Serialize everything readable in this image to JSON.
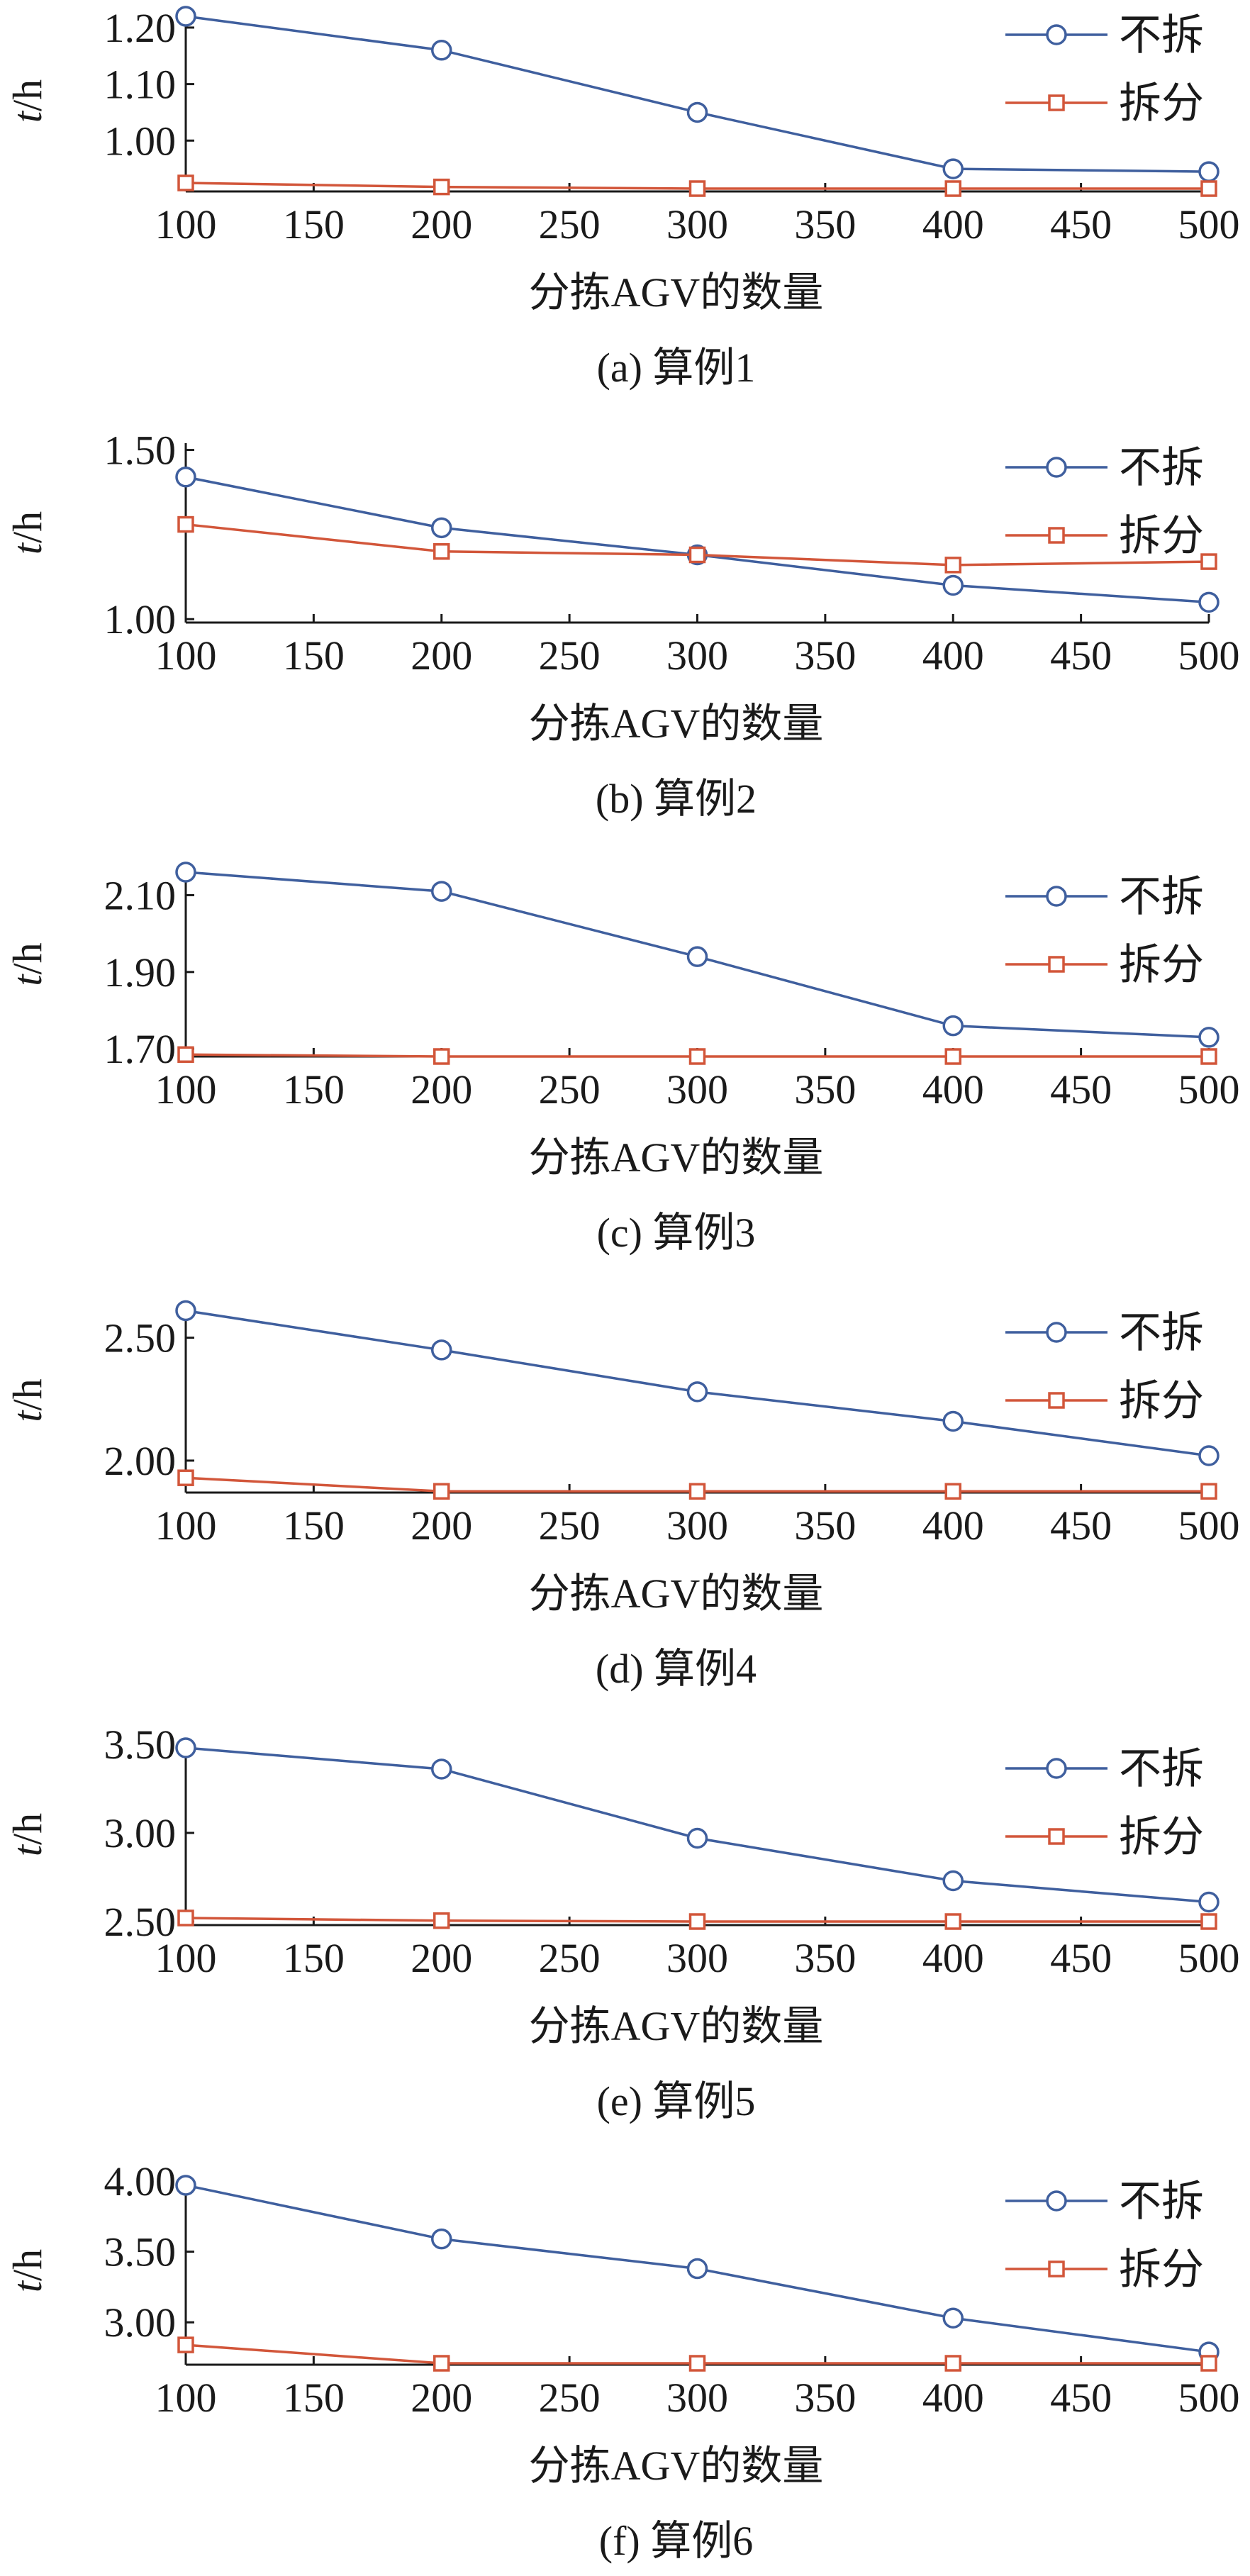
{
  "colors": {
    "no_split": "#3f5f9e",
    "split": "#d2563a",
    "axis": "#1a1a1a"
  },
  "chart_data": [
    {
      "type": "line",
      "caption": "(a) 算例1",
      "xlabel": "分拣AGV的数量",
      "ylabel": "t/h",
      "x": [
        100,
        200,
        300,
        400,
        500
      ],
      "xticks": [
        100,
        150,
        200,
        250,
        300,
        350,
        400,
        450,
        500
      ],
      "xlim": [
        100,
        500
      ],
      "ylim": [
        0.91,
        1.23
      ],
      "yticks": [
        1.0,
        1.1,
        1.2
      ],
      "ytick_labels": [
        "1.00",
        "1.10",
        "1.20"
      ],
      "legend_position": "top-right",
      "series": [
        {
          "name": "不拆",
          "marker": "circle",
          "values": [
            1.22,
            1.16,
            1.05,
            0.95,
            0.945
          ]
        },
        {
          "name": "拆分",
          "marker": "square",
          "values": [
            0.925,
            0.918,
            0.915,
            0.915,
            0.915
          ]
        }
      ]
    },
    {
      "type": "line",
      "caption": "(b) 算例2",
      "xlabel": "分拣AGV的数量",
      "ylabel": "t/h",
      "x": [
        100,
        200,
        300,
        400,
        500
      ],
      "xticks": [
        100,
        150,
        200,
        250,
        300,
        350,
        400,
        450,
        500
      ],
      "xlim": [
        100,
        500
      ],
      "ylim": [
        0.99,
        1.52
      ],
      "yticks": [
        1.0,
        1.5
      ],
      "ytick_labels": [
        "1.00",
        "1.50"
      ],
      "legend_position": "top-right",
      "series": [
        {
          "name": "不拆",
          "marker": "circle",
          "values": [
            1.42,
            1.27,
            1.19,
            1.1,
            1.05
          ]
        },
        {
          "name": "拆分",
          "marker": "square",
          "values": [
            1.28,
            1.2,
            1.19,
            1.16,
            1.17
          ]
        }
      ]
    },
    {
      "type": "line",
      "caption": "(c) 算例3",
      "xlabel": "分拣AGV的数量",
      "ylabel": "t/h",
      "x": [
        100,
        200,
        300,
        400,
        500
      ],
      "xticks": [
        100,
        150,
        200,
        250,
        300,
        350,
        400,
        450,
        500
      ],
      "xlim": [
        100,
        500
      ],
      "ylim": [
        1.68,
        2.16
      ],
      "yticks": [
        1.7,
        1.9,
        2.1
      ],
      "ytick_labels": [
        "1.70",
        "1.90",
        "2.10"
      ],
      "legend_position": "top-right",
      "series": [
        {
          "name": "不拆",
          "marker": "circle",
          "values": [
            2.16,
            2.11,
            1.94,
            1.76,
            1.73
          ]
        },
        {
          "name": "拆分",
          "marker": "square",
          "values": [
            1.685,
            1.68,
            1.68,
            1.68,
            1.68
          ]
        }
      ]
    },
    {
      "type": "line",
      "caption": "(d) 算例4",
      "xlabel": "分拣AGV的数量",
      "ylabel": "t/h",
      "x": [
        100,
        200,
        300,
        400,
        500
      ],
      "xticks": [
        100,
        150,
        200,
        250,
        300,
        350,
        400,
        450,
        500
      ],
      "xlim": [
        100,
        500
      ],
      "ylim": [
        1.87,
        2.62
      ],
      "yticks": [
        2.0,
        2.5
      ],
      "ytick_labels": [
        "2.00",
        "2.50"
      ],
      "legend_position": "top-right",
      "series": [
        {
          "name": "不拆",
          "marker": "circle",
          "values": [
            2.61,
            2.45,
            2.28,
            2.16,
            2.02
          ]
        },
        {
          "name": "拆分",
          "marker": "square",
          "values": [
            1.93,
            1.875,
            1.875,
            1.875,
            1.875
          ]
        }
      ]
    },
    {
      "type": "line",
      "caption": "(e) 算例5",
      "xlabel": "分拣AGV的数量",
      "ylabel": "t/h",
      "x": [
        100,
        200,
        300,
        400,
        500
      ],
      "xticks": [
        100,
        150,
        200,
        250,
        300,
        350,
        400,
        450,
        500
      ],
      "xlim": [
        100,
        500
      ],
      "ylim": [
        2.48,
        3.5
      ],
      "yticks": [
        2.5,
        3.0,
        3.5
      ],
      "ytick_labels": [
        "2.50",
        "3.00",
        "3.50"
      ],
      "legend_position": "top-right",
      "series": [
        {
          "name": "不拆",
          "marker": "circle",
          "values": [
            3.48,
            3.36,
            2.97,
            2.73,
            2.61
          ]
        },
        {
          "name": "拆分",
          "marker": "square",
          "values": [
            2.52,
            2.505,
            2.5,
            2.5,
            2.5
          ]
        }
      ]
    },
    {
      "type": "line",
      "caption": "(f) 算例6",
      "xlabel": "分拣AGV的数量",
      "ylabel": "t/h",
      "x": [
        100,
        200,
        300,
        400,
        500
      ],
      "xticks": [
        100,
        150,
        200,
        250,
        300,
        350,
        400,
        450,
        500
      ],
      "xlim": [
        100,
        500
      ],
      "ylim": [
        2.7,
        4.03
      ],
      "yticks": [
        3.0,
        3.5,
        4.0
      ],
      "ytick_labels": [
        "3.00",
        "3.50",
        "4.00"
      ],
      "legend_position": "top-right",
      "series": [
        {
          "name": "不拆",
          "marker": "circle",
          "values": [
            3.97,
            3.59,
            3.38,
            3.03,
            2.79
          ]
        },
        {
          "name": "拆分",
          "marker": "square",
          "values": [
            2.84,
            2.71,
            2.71,
            2.71,
            2.71
          ]
        }
      ]
    }
  ]
}
